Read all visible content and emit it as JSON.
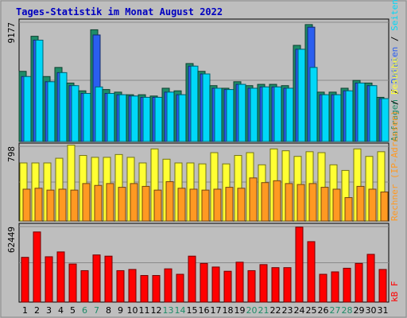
{
  "chart_data": {
    "type": "bar",
    "title": "Tages-Statistik im Monat August 2022",
    "categories": [
      "1",
      "2",
      "3",
      "4",
      "5",
      "6",
      "7",
      "8",
      "9",
      "10",
      "11",
      "12",
      "13",
      "14",
      "15",
      "16",
      "17",
      "18",
      "19",
      "20",
      "21",
      "22",
      "23",
      "24",
      "25",
      "26",
      "27",
      "28",
      "29",
      "30",
      "31"
    ],
    "weekend_categories": [
      "6",
      "7",
      "13",
      "14",
      "20",
      "21",
      "27",
      "28"
    ],
    "panels": [
      {
        "max_label": "9177",
        "ymax": 9177,
        "series": [
          {
            "name": "Anfragen",
            "color": "#1e8c68",
            "values": [
              5400,
              8100,
              5000,
              5700,
              4500,
              3900,
              8600,
              4000,
              3800,
              3600,
              3600,
              3500,
              4100,
              3900,
              6000,
              5400,
              4300,
              4100,
              4600,
              4300,
              4400,
              4400,
              4300,
              7400,
              9000,
              3800,
              3800,
              4100,
              4700,
              4500,
              3400
            ]
          },
          {
            "name": "Dateien",
            "color": "#2a5ef0",
            "values": [
              5000,
              7800,
              4600,
              5300,
              4300,
              3700,
              8200,
              3700,
              3600,
              3500,
              3400,
              3400,
              3800,
              3600,
              5800,
              5200,
              4100,
              4000,
              4400,
              4100,
              4200,
              4200,
              4100,
              7100,
              8800,
              3600,
              3600,
              3900,
              4500,
              4300,
              3300
            ]
          },
          {
            "name": "Seiten",
            "color": "#00d8f8",
            "values": [
              5000,
              7800,
              4600,
              5300,
              4300,
              3700,
              4200,
              3700,
              3600,
              3500,
              3400,
              3400,
              3800,
              3600,
              5800,
              5200,
              4100,
              4000,
              4400,
              4100,
              4200,
              4200,
              4100,
              7100,
              5700,
              3600,
              3600,
              3900,
              4500,
              4300,
              3300
            ]
          }
        ],
        "axis_label": [
          {
            "text": "Anfragen",
            "color": "#1e8c68"
          },
          {
            "text": " / ",
            "color": "#000000"
          },
          {
            "text": "Dateien",
            "color": "#2a5ef0"
          },
          {
            "text": " / ",
            "color": "#000000"
          },
          {
            "text": "Seiten",
            "color": "#00d8f8"
          }
        ]
      },
      {
        "max_label": "798",
        "ymax": 798,
        "series": [
          {
            "name": "Besuche",
            "color": "#ffff33",
            "values": [
              620,
              620,
              620,
              670,
              810,
              700,
              680,
              680,
              710,
              680,
              620,
              770,
              660,
              620,
              620,
              610,
              730,
              610,
              700,
              730,
              600,
              770,
              750,
              690,
              740,
              730,
              600,
              540,
              770,
              690,
              740
            ]
          },
          {
            "name": "Rechner (IP-Adressen)",
            "color": "#ff9922",
            "values": [
              340,
              350,
              330,
              340,
              330,
              400,
              380,
              400,
              360,
              400,
              370,
              330,
              420,
              350,
              340,
              330,
              340,
              360,
              350,
              460,
              410,
              430,
              400,
              390,
              400,
              360,
              340,
              250,
              370,
              340,
              310
            ]
          }
        ],
        "axis_label": [
          {
            "text": "Rechner (IP-Adressen)",
            "color": "#ff9922"
          },
          {
            "text": " / ",
            "color": "#000000"
          },
          {
            "text": "Besuche",
            "color": "#ffff33"
          }
        ]
      },
      {
        "max_label": "62449",
        "ymax": 62449,
        "series": [
          {
            "name": "kB F",
            "color": "#ff0000",
            "values": [
              37000,
              58000,
              37500,
              41500,
              31500,
              26000,
              39000,
              38000,
              26000,
              27000,
              22000,
              22000,
              27500,
              23000,
              38000,
              32000,
              29000,
              25500,
              33000,
              26000,
              31000,
              28500,
              28500,
              62000,
              50000,
              23000,
              25000,
              28000,
              32000,
              39500,
              27000
            ]
          }
        ],
        "axis_label": [
          {
            "text": "kB F",
            "color": "#ff0000"
          }
        ]
      }
    ]
  }
}
